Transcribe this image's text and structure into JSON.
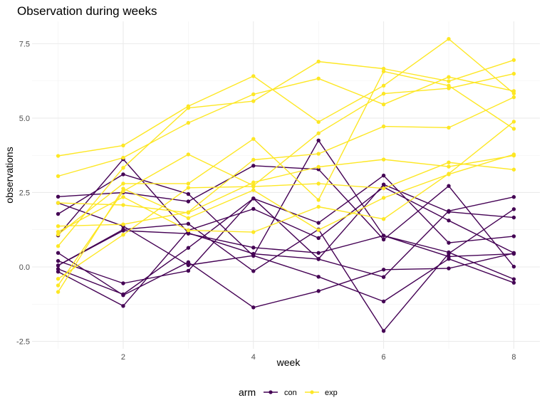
{
  "chart_data": {
    "type": "line",
    "title": "Observation during weeks",
    "xlabel": "week",
    "ylabel": "observations",
    "x": [
      1,
      2,
      3,
      4,
      5,
      6,
      7,
      8
    ],
    "xlim": [
      0.6,
      8.4
    ],
    "ylim": [
      -2.75,
      8.25
    ],
    "xticks": [
      2,
      4,
      6,
      8
    ],
    "yticks": [
      -2.5,
      0,
      2.5,
      5,
      7.5
    ],
    "ytick_labels": [
      "-2.5",
      "0.0",
      "2.5",
      "5.0",
      "7.5"
    ],
    "grid": true,
    "legend": {
      "title": "arm",
      "position": "bottom",
      "entries": [
        {
          "label": "con",
          "color": "#440154"
        },
        {
          "label": "exp",
          "color": "#FDE725"
        }
      ]
    },
    "groups": {
      "con": {
        "color": "#440154",
        "subjects": [
          [
            0.2,
            -0.55,
            -0.13,
            2.3,
            0.27,
            2.77,
            1.85,
            1.66
          ],
          [
            0.05,
            1.22,
            1.12,
            0.65,
            0.47,
            1.05,
            0.35,
            0.44
          ],
          [
            2.36,
            2.5,
            2.2,
            3.4,
            3.28,
            0.92,
            2.72,
            0.01
          ],
          [
            -0.07,
            -0.92,
            0.64,
            2.3,
            1.48,
            3.07,
            0.81,
            1.03
          ],
          [
            -0.16,
            -1.31,
            1.23,
            1.95,
            0.97,
            2.68,
            1.56,
            0.47
          ],
          [
            1.06,
            3.62,
            1.14,
            0.44,
            0.26,
            -0.34,
            1.88,
            2.35
          ],
          [
            0.47,
            -0.95,
            0.16,
            -1.36,
            -0.81,
            -0.09,
            -0.05,
            0.46
          ],
          [
            1.78,
            3.11,
            2.45,
            0.37,
            4.25,
            1.05,
            0.49,
            -0.41
          ],
          [
            0.05,
            1.26,
            1.45,
            -0.14,
            1.26,
            -2.15,
            0.45,
            1.94
          ],
          [
            2.15,
            1.37,
            0.06,
            0.38,
            -0.33,
            -1.16,
            0.27,
            -0.53
          ]
        ]
      },
      "exp": {
        "color": "#FDE725",
        "subjects": [
          [
            3.05,
            3.67,
            4.84,
            5.8,
            6.33,
            5.46,
            6.38,
            5.91
          ],
          [
            -0.84,
            2.63,
            1.64,
            2.58,
            1.24,
            2.32,
            3.11,
            3.78
          ],
          [
            2.15,
            2.08,
            1.82,
            2.84,
            3.36,
            3.61,
            3.37,
            3.74
          ],
          [
            -0.62,
            2.54,
            3.78,
            2.73,
            4.49,
            5.82,
            6.0,
            6.49
          ],
          [
            0.7,
            3.33,
            5.34,
            5.57,
            6.9,
            6.66,
            6.24,
            6.95
          ],
          [
            3.73,
            4.08,
            5.4,
            6.41,
            4.87,
            6.09,
            7.66,
            5.83
          ],
          [
            1.18,
            2.35,
            1.23,
            1.17,
            2.02,
            1.61,
            3.13,
            4.88
          ],
          [
            1.37,
            1.43,
            1.84,
            3.6,
            3.8,
            4.72,
            4.68,
            5.7
          ],
          [
            -0.4,
            1.08,
            2.66,
            2.7,
            2.8,
            2.64,
            3.51,
            3.27
          ],
          [
            1.09,
            2.8,
            2.8,
            4.3,
            2.25,
            6.57,
            6.09,
            4.64
          ]
        ]
      }
    }
  }
}
